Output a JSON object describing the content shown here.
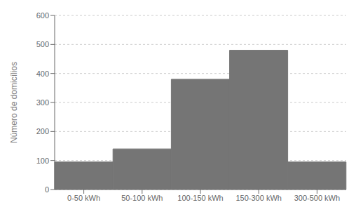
{
  "chart_data": {
    "type": "bar",
    "categories": [
      "0-50 kWh",
      "50-100 kWh",
      "100-150 kWh",
      "150-300 kWh",
      "300-500 kWh"
    ],
    "values": [
      95,
      140,
      380,
      480,
      95
    ],
    "color": "#757575",
    "ylabel": "Número de domicílios",
    "ylim": [
      0,
      600
    ],
    "yticks": [
      0,
      100,
      200,
      300,
      400,
      500,
      600
    ],
    "grid": true
  }
}
